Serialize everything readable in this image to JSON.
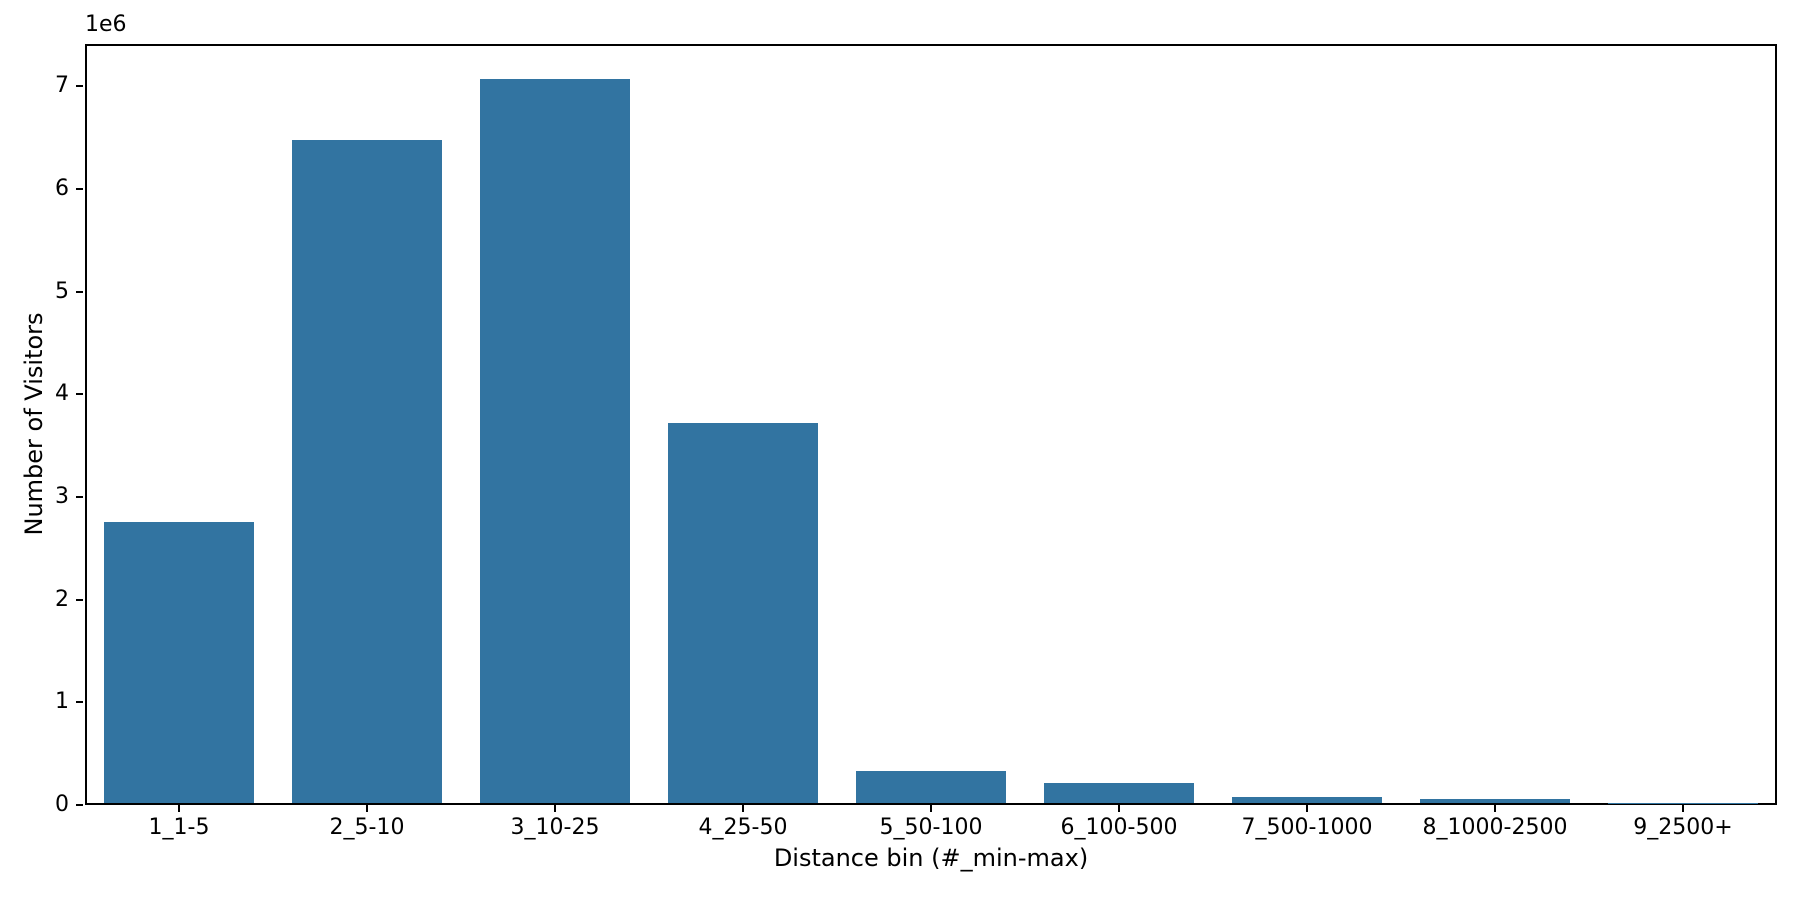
{
  "chart_data": {
    "type": "bar",
    "title": "",
    "xlabel": "Distance bin (#_min-max)",
    "ylabel": "Number of Visitors",
    "y_offset_text": "1e6",
    "categories": [
      "1_1-5",
      "2_5-10",
      "3_10-25",
      "4_25-50",
      "5_50-100",
      "6_100-500",
      "7_500-1000",
      "8_1000-2500",
      "9_2500+"
    ],
    "values": [
      2740000,
      6460000,
      7050000,
      3700000,
      310000,
      200000,
      55000,
      40000,
      4000
    ],
    "yticks": [
      0,
      1000000,
      2000000,
      3000000,
      4000000,
      5000000,
      6000000,
      7000000
    ],
    "ytick_labels": [
      "0",
      "1",
      "2",
      "3",
      "4",
      "5",
      "6",
      "7"
    ],
    "ylim": [
      0,
      7410000
    ],
    "bar_width_fraction": 0.8,
    "bar_color": "#3274a1",
    "axis_color": "#000000",
    "background_color": "#ffffff",
    "grid": false,
    "legend": null
  }
}
